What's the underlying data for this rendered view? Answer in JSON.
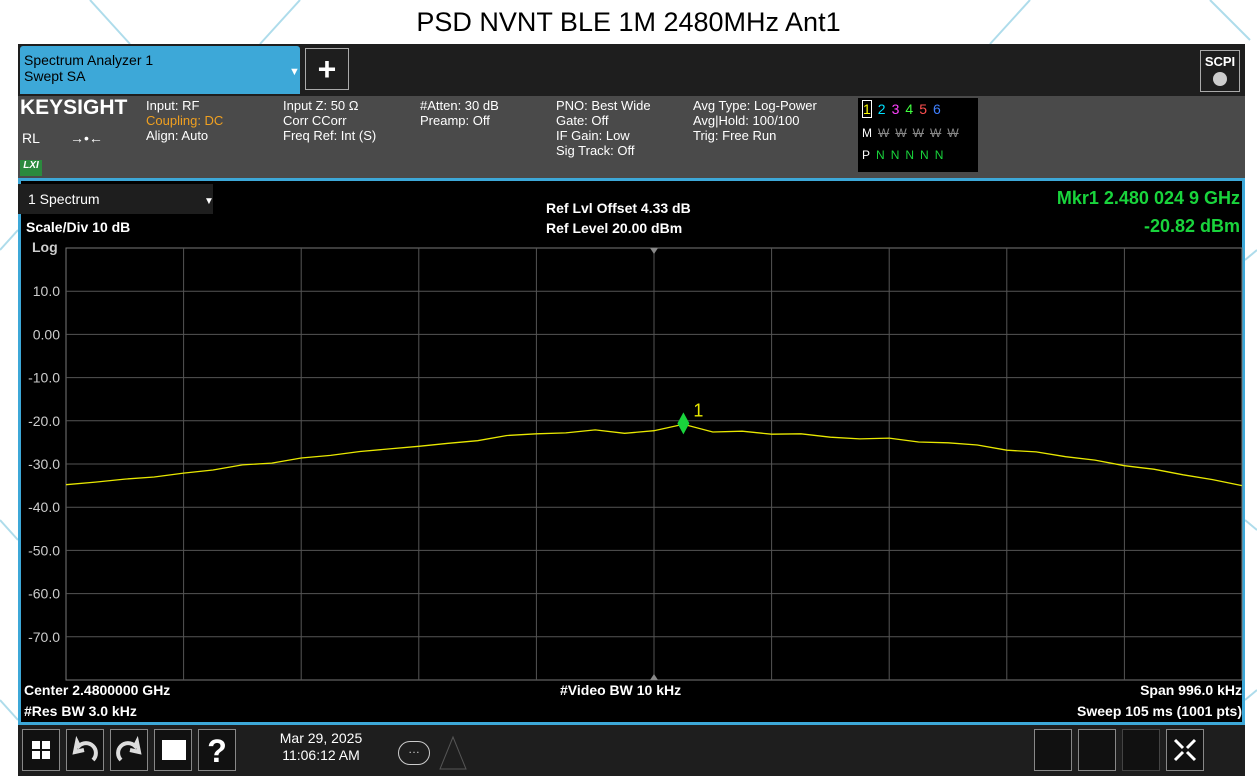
{
  "page_title": "PSD NVNT BLE 1M 2480MHz Ant1",
  "tabs": {
    "tab1_line1": "Spectrum Analyzer 1",
    "tab1_line2": "Swept SA",
    "add": "+",
    "scpi": "SCPI"
  },
  "info": {
    "brand": "KEYSIGHT",
    "rl": "RL",
    "lxi": "LXI",
    "col1": [
      "Input: RF",
      "Coupling: DC",
      "Align: Auto"
    ],
    "col2": [
      "Input Z: 50 Ω",
      "Corr CCorr",
      "Freq Ref: Int (S)"
    ],
    "col3": [
      "#Atten: 30 dB",
      "Preamp: Off"
    ],
    "col4": [
      "PNO: Best Wide",
      "Gate: Off",
      "IF Gain: Low",
      "Sig Track: Off"
    ],
    "col5": [
      "Avg Type: Log-Power",
      "Avg|Hold: 100/100",
      "Trig: Free Run"
    ],
    "trace_numbers": [
      "1",
      "2",
      "3",
      "4",
      "5",
      "6"
    ],
    "trace_types": [
      "M",
      "W",
      "W",
      "W",
      "W",
      "W"
    ],
    "trace_detectors": [
      "P",
      "N",
      "N",
      "N",
      "N",
      "N"
    ]
  },
  "plot": {
    "window": "1 Spectrum",
    "scale": "Scale/Div 10 dB",
    "log": "Log",
    "ref_offset": "Ref Lvl Offset 4.33 dB",
    "ref_level": "Ref Level 20.00 dBm",
    "marker_freq": "Mkr1  2.480 024 9 GHz",
    "marker_level": "-20.82 dBm",
    "marker_label": "1",
    "center": "Center 2.4800000 GHz",
    "res_bw": "#Res BW 3.0 kHz",
    "video_bw": "#Video BW 10 kHz",
    "span": "Span 996.0 kHz",
    "sweep": "Sweep 105 ms (1001 pts)"
  },
  "taskbar": {
    "date": "Mar 29, 2025",
    "time": "11:06:12 AM"
  },
  "chart_data": {
    "type": "line",
    "ylim": [
      -80,
      20
    ],
    "xlim": [
      2479.502,
      2480.498
    ],
    "yticks": [
      {
        "value": 10,
        "label": "10.0"
      },
      {
        "value": 0,
        "label": "0.00"
      },
      {
        "value": -10,
        "label": "-10.0"
      },
      {
        "value": -20,
        "label": "-20.0"
      },
      {
        "value": -30,
        "label": "-30.0"
      },
      {
        "value": -40,
        "label": "-40.0"
      },
      {
        "value": -50,
        "label": "-50.0"
      },
      {
        "value": -60,
        "label": "-60.0"
      },
      {
        "value": -70,
        "label": "-70.0"
      }
    ],
    "grid": true,
    "x": [
      2479.502,
      2479.5269,
      2479.5518,
      2479.5767,
      2479.6016,
      2479.6265,
      2479.6514,
      2479.6763,
      2479.7012,
      2479.7261,
      2479.751,
      2479.7759,
      2479.8008,
      2479.8257,
      2479.8506,
      2479.8755,
      2479.9004,
      2479.9253,
      2479.9502,
      2479.9751,
      2480,
      2480.0249,
      2480.0498,
      2480.0747,
      2480.0996,
      2480.1245,
      2480.1494,
      2480.1743,
      2480.1992,
      2480.2241,
      2480.249,
      2480.2739,
      2480.2988,
      2480.3237,
      2480.3486,
      2480.3735,
      2480.3984,
      2480.4233,
      2480.4482,
      2480.4731,
      2480.498
    ],
    "series": [
      {
        "name": "Trace 1",
        "color": "#e8e800",
        "values": [
          -34.8,
          -34.2,
          -33.5,
          -33.0,
          -32.1,
          -31.4,
          -30.2,
          -29.8,
          -28.6,
          -28.0,
          -27.1,
          -26.5,
          -25.9,
          -25.2,
          -24.6,
          -23.4,
          -23.0,
          -22.8,
          -22.1,
          -22.9,
          -22.3,
          -20.82,
          -22.6,
          -22.4,
          -23.1,
          -23.0,
          -23.8,
          -24.2,
          -24.0,
          -24.9,
          -25.1,
          -25.6,
          -26.8,
          -27.2,
          -28.3,
          -29.1,
          -30.4,
          -31.2,
          -32.5,
          -33.6,
          -35.0
        ]
      }
    ],
    "marker": {
      "index": 21,
      "color": "#19d43c"
    }
  }
}
